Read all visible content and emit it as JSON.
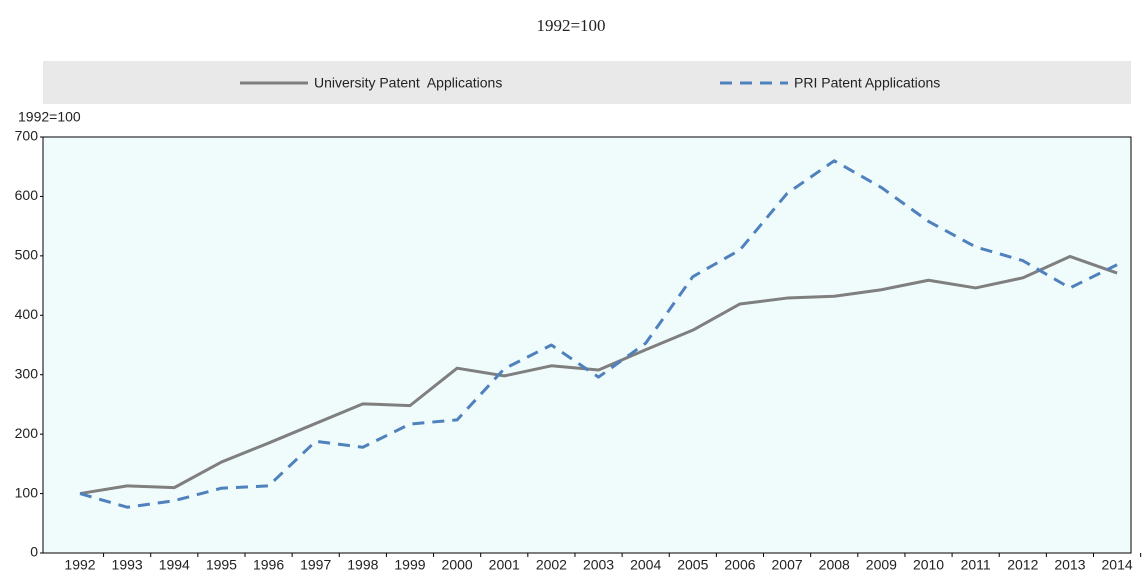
{
  "chart_data": {
    "type": "line",
    "title": "1992=100",
    "ylabel": "1992=100",
    "categories": [
      "1992",
      "1993",
      "1994",
      "1995",
      "1996",
      "1997",
      "1998",
      "1999",
      "2000",
      "2001",
      "2002",
      "2003",
      "2004",
      "2005",
      "2006",
      "2007",
      "2008",
      "2009",
      "2010",
      "2011",
      "2012",
      "2013",
      "2014"
    ],
    "series": [
      {
        "name": "University Patent  Applications",
        "color": "#7f7f7f",
        "line_style": "solid",
        "values": [
          100,
          113,
          110,
          153,
          185,
          218,
          251,
          248,
          311,
          298,
          315,
          308,
          342,
          375,
          419,
          429,
          432,
          443,
          459,
          446,
          463,
          499,
          471
        ]
      },
      {
        "name": "PRI Patent Applications",
        "color": "#4f81bd",
        "line_style": "dashed",
        "values": [
          100,
          77,
          88,
          109,
          113,
          188,
          178,
          217,
          224,
          310,
          350,
          296,
          353,
          465,
          510,
          605,
          660,
          615,
          558,
          515,
          492,
          446,
          485
        ]
      }
    ],
    "ylim": [
      0,
      700
    ],
    "yticks": [
      0,
      100,
      200,
      300,
      400,
      500,
      600,
      700
    ],
    "grid": false,
    "legend": "top"
  }
}
